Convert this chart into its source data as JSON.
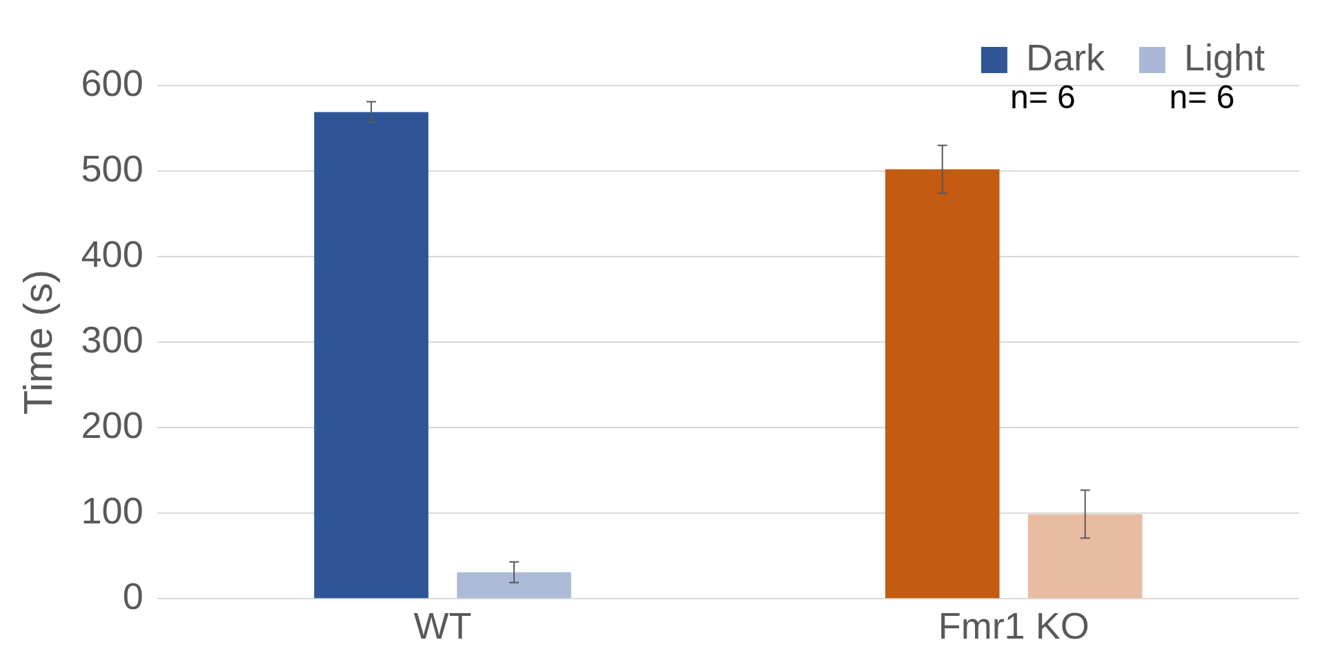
{
  "chart_data": {
    "type": "bar",
    "ylabel": "Time (s)",
    "categories": [
      "WT",
      "Fmr1 KO"
    ],
    "series": [
      {
        "name": "Dark",
        "color": "#2f5597",
        "colors": [
          "#2f5597",
          "#c55a11"
        ],
        "values": [
          569,
          502
        ],
        "errors": [
          12,
          28
        ]
      },
      {
        "name": "Light",
        "color": "#a9b8d6",
        "colors": [
          "#abbad7",
          "#e8bca0"
        ],
        "values": [
          31,
          99
        ],
        "errors": [
          12,
          28
        ]
      }
    ],
    "ylim": [
      0,
      600
    ],
    "yticks": [
      0,
      100,
      200,
      300,
      400,
      500,
      600
    ],
    "grid": "y",
    "legend": "top right",
    "annotations": [
      "n= 6",
      "n= 6"
    ]
  }
}
